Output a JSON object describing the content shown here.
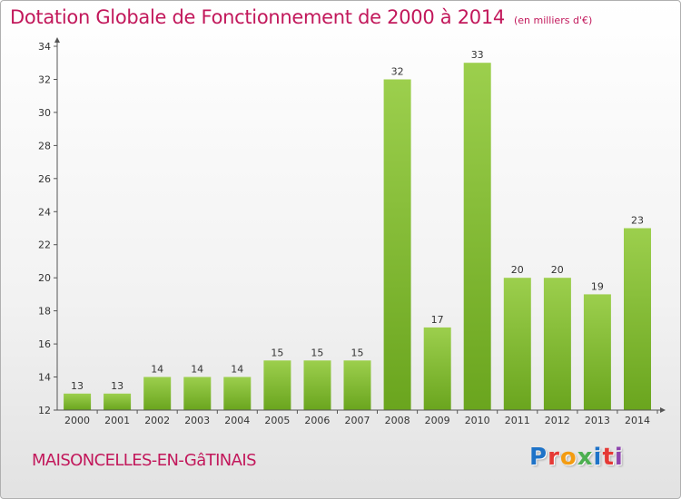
{
  "chart_data": {
    "type": "bar",
    "title": "Dotation Globale de Fonctionnement de 2000 à 2014",
    "subtitle": "(en milliers d'€)",
    "categories": [
      "2000",
      "2001",
      "2002",
      "2003",
      "2004",
      "2005",
      "2006",
      "2007",
      "2008",
      "2009",
      "2010",
      "2011",
      "2012",
      "2013",
      "2014"
    ],
    "values": [
      13,
      13,
      14,
      14,
      14,
      15,
      15,
      15,
      32,
      17,
      33,
      20,
      20,
      19,
      23
    ],
    "ylim": [
      12,
      34
    ],
    "yticks": [
      12,
      14,
      16,
      18,
      20,
      22,
      24,
      26,
      28,
      30,
      32,
      34
    ],
    "xlabel": "",
    "ylabel": "",
    "grid": false,
    "colors": {
      "bar_light": "#9ccf4d",
      "bar_dark": "#6aa51e",
      "axis": "#555555",
      "title": "#c2185b"
    }
  },
  "footer": {
    "city": "MAISONCELLES-EN-GâTINAIS",
    "logo_text": "Proxiti",
    "logo_colors": [
      "#1e73c8",
      "#e53935",
      "#f39c12",
      "#4caf50",
      "#1e73c8",
      "#e53935",
      "#8e44ad"
    ]
  }
}
